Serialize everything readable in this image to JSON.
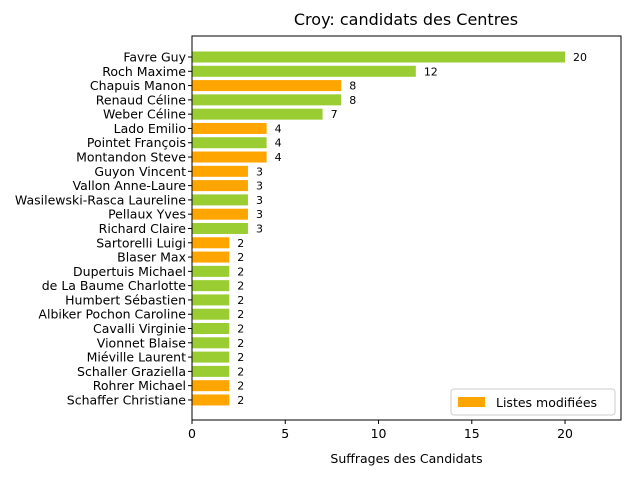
{
  "chart_data": {
    "type": "bar",
    "orientation": "horizontal",
    "title": "Croy: candidats des Centres",
    "xlabel": "Suffrages des Candidats",
    "ylabel": "",
    "xlim": [
      0,
      23
    ],
    "xticks": [
      0,
      5,
      10,
      15,
      20
    ],
    "grid": false,
    "legend": {
      "entries": [
        {
          "label": "Listes modifiées",
          "color": "#ffa500"
        }
      ],
      "placement": "lower-right"
    },
    "colors": {
      "orange": "#ffa500",
      "green": "#9acd32"
    },
    "categories": [
      "Favre Guy",
      "Roch Maxime",
      "Chapuis Manon",
      "Renaud Céline",
      "Weber Céline",
      "Lado Emilio",
      "Pointet François",
      "Montandon Steve",
      "Guyon Vincent",
      "Vallon Anne-Laure",
      "Wasilewski-Rasca Laureline",
      "Pellaux Yves",
      "Richard Claire",
      "Sartorelli Luigi",
      "Blaser Max",
      "Dupertuis Michael",
      "de La Baume Charlotte",
      "Humbert Sébastien",
      "Albiker Pochon Caroline",
      "Cavalli Virginie",
      "Vionnet Blaise",
      "Miéville Laurent",
      "Schaller Graziella",
      "Rohrer Michael",
      "Schaffer Christiane"
    ],
    "values": [
      20,
      12,
      8,
      8,
      7,
      4,
      4,
      4,
      3,
      3,
      3,
      3,
      3,
      2,
      2,
      2,
      2,
      2,
      2,
      2,
      2,
      2,
      2,
      2,
      2
    ],
    "bar_colors": [
      "green",
      "green",
      "orange",
      "green",
      "green",
      "orange",
      "green",
      "orange",
      "orange",
      "orange",
      "green",
      "orange",
      "green",
      "orange",
      "orange",
      "green",
      "green",
      "green",
      "green",
      "green",
      "green",
      "green",
      "green",
      "orange",
      "orange"
    ]
  }
}
